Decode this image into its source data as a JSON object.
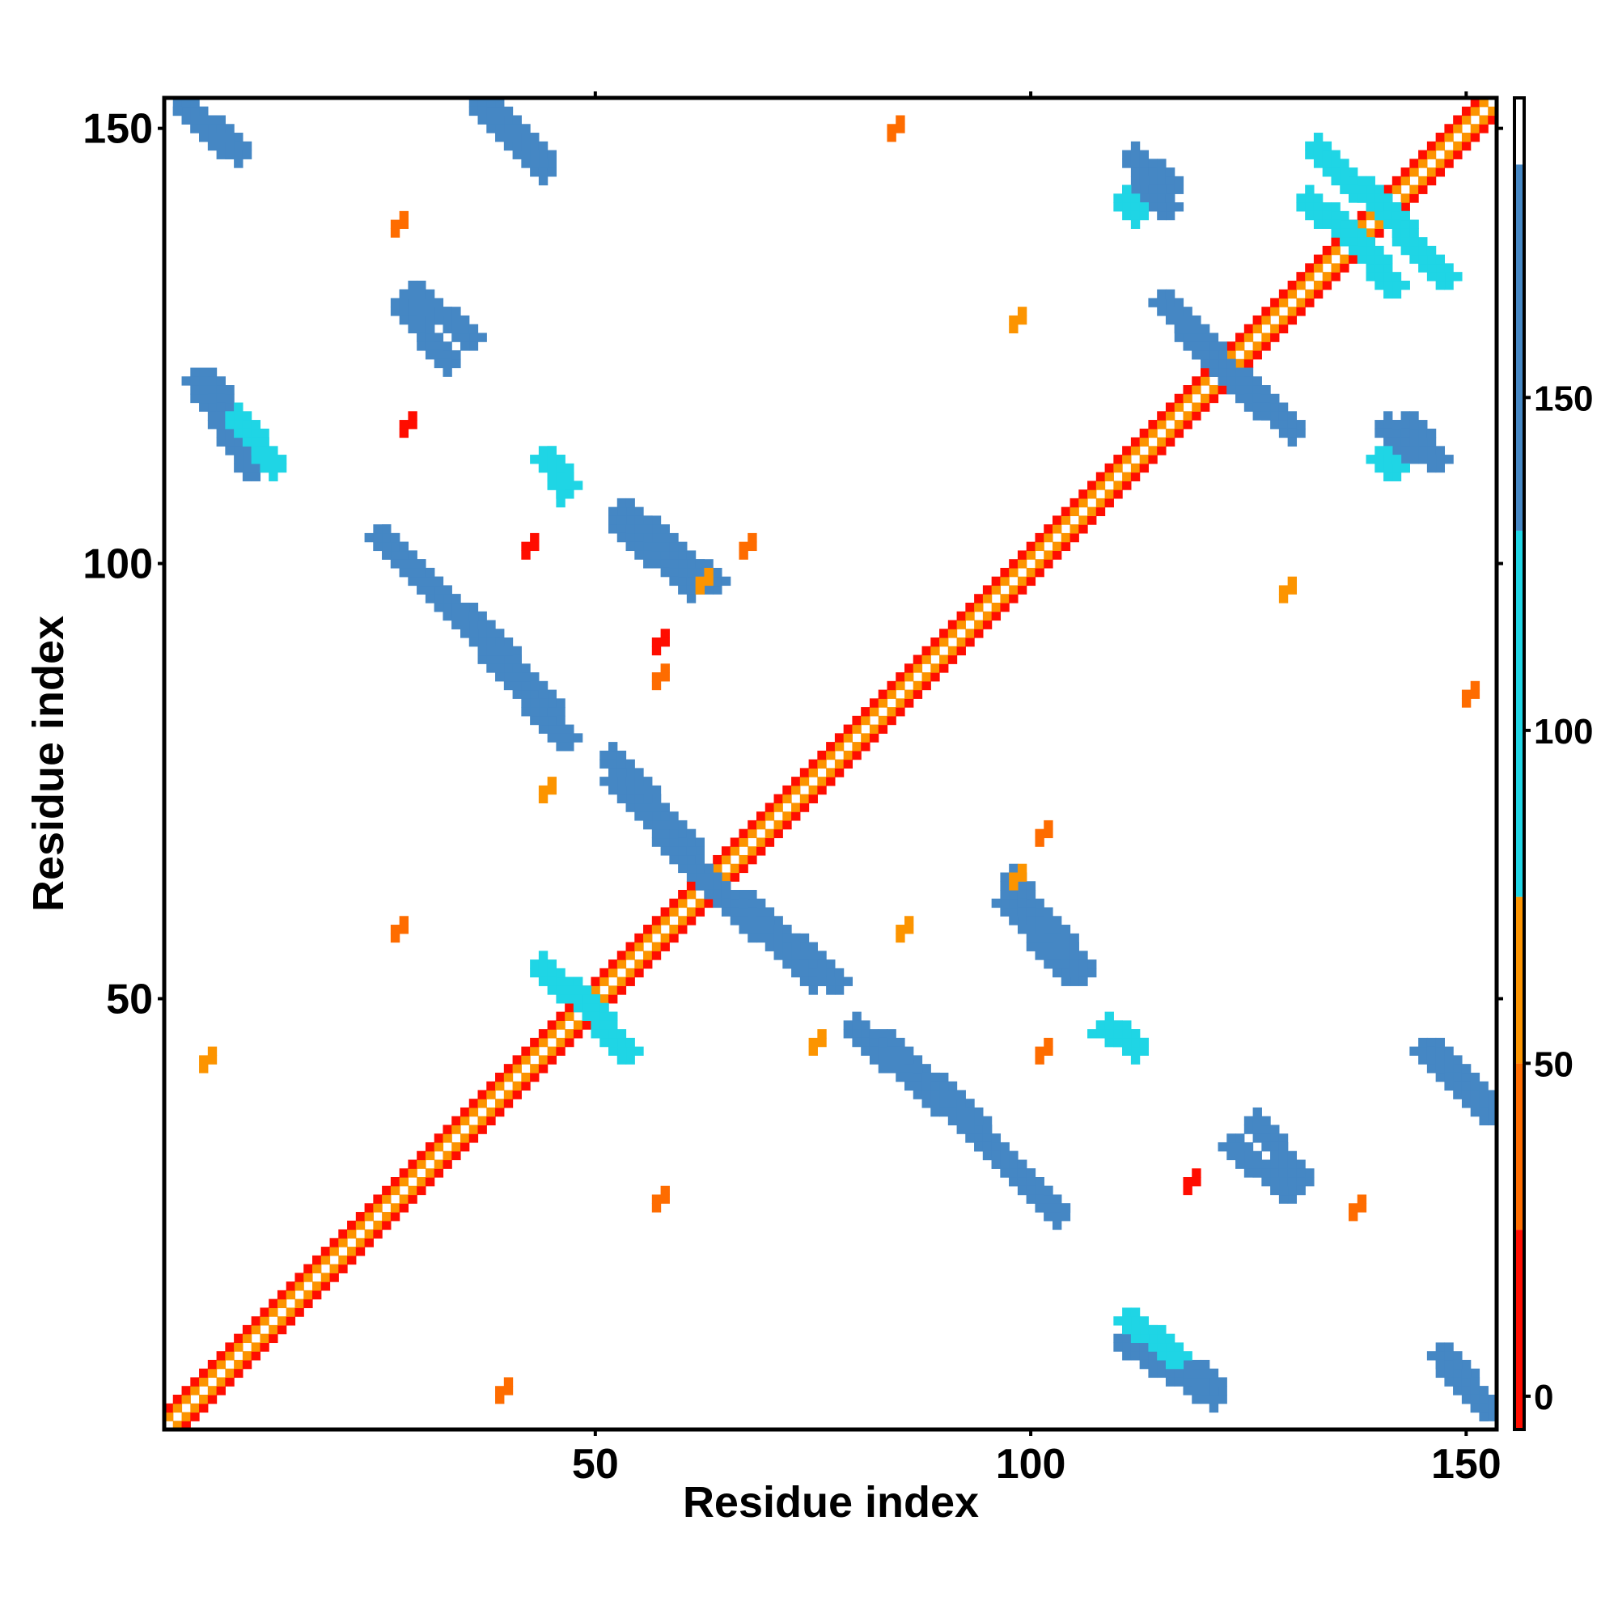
{
  "chart_data": {
    "type": "heatmap",
    "title": "",
    "xlabel": "Residue index",
    "ylabel": "Residue index",
    "xlim": [
      1,
      153
    ],
    "ylim": [
      1,
      153
    ],
    "x_ticks": [
      50,
      100,
      150
    ],
    "y_ticks": [
      50,
      100,
      150
    ],
    "colorbar": {
      "ticks": [
        0,
        50,
        100,
        150
      ],
      "range": [
        -5,
        195
      ],
      "color_bands": [
        {
          "from": -5,
          "to": 25,
          "color": "#ff0d00"
        },
        {
          "from": 25,
          "to": 50,
          "color": "#fe6c00"
        },
        {
          "from": 50,
          "to": 75,
          "color": "#fc9400"
        },
        {
          "from": 75,
          "to": 130,
          "color": "#1fd5e5"
        },
        {
          "from": 130,
          "to": 185,
          "color": "#4587c4"
        },
        {
          "from": 185,
          "to": 195,
          "color": "#ffffff"
        }
      ]
    },
    "grid": false,
    "diagonal_bands": [
      {
        "from": 1,
        "to": 153,
        "colors": [
          "#fc9400",
          "#ff0d00"
        ]
      }
    ],
    "contact_segments": [
      {
        "x1": 2,
        "y1": 153,
        "x2": 9,
        "y2": 147,
        "value": 150
      },
      {
        "x1": 36,
        "y1": 153,
        "x2": 44,
        "y2": 145,
        "value": 150
      },
      {
        "x1": 27,
        "y1": 130,
        "x2": 33,
        "y2": 123,
        "value": 150
      },
      {
        "x1": 25,
        "y1": 103,
        "x2": 34,
        "y2": 94,
        "value": 150
      },
      {
        "x1": 35,
        "y1": 94,
        "x2": 45,
        "y2": 83,
        "value": 150
      },
      {
        "x1": 51,
        "y1": 78,
        "x2": 61,
        "y2": 67,
        "value": 150
      },
      {
        "x1": 62,
        "y1": 64,
        "x2": 75,
        "y2": 52,
        "value": 150
      },
      {
        "x1": 52,
        "y1": 105,
        "x2": 61,
        "y2": 97,
        "value": 150
      },
      {
        "x1": 79,
        "y1": 47,
        "x2": 89,
        "y2": 38,
        "value": 150
      },
      {
        "x1": 89,
        "y1": 39,
        "x2": 103,
        "y2": 25,
        "value": 150
      },
      {
        "x1": 97,
        "y1": 64,
        "x2": 106,
        "y2": 53,
        "value": 150
      },
      {
        "x1": 108,
        "y1": 47,
        "x2": 112,
        "y2": 44,
        "value": 100
      },
      {
        "x1": 125,
        "y1": 36,
        "x2": 131,
        "y2": 29,
        "value": 150
      },
      {
        "x1": 146,
        "y1": 44,
        "x2": 152,
        "y2": 38,
        "value": 150
      },
      {
        "x1": 147,
        "y1": 8,
        "x2": 152,
        "y2": 3,
        "value": 150
      },
      {
        "x1": 110,
        "y1": 11,
        "x2": 121,
        "y2": 4,
        "value": 150
      },
      {
        "x1": 117,
        "y1": 127,
        "x2": 124,
        "y2": 120,
        "value": 150
      },
      {
        "x1": 124,
        "y1": 121,
        "x2": 130,
        "y2": 115,
        "value": 150
      },
      {
        "x1": 111,
        "y1": 147,
        "x2": 116,
        "y2": 143,
        "value": 150
      },
      {
        "x1": 140,
        "y1": 116,
        "x2": 143,
        "y2": 112,
        "value": 150
      },
      {
        "x1": 132,
        "y1": 148,
        "x2": 143,
        "y2": 138,
        "value": 100
      },
      {
        "x1": 44,
        "y1": 112,
        "x2": 46,
        "y2": 108,
        "value": 100
      },
      {
        "x1": 5,
        "y1": 121,
        "x2": 7,
        "y2": 119,
        "value": 150
      },
      {
        "x1": 8,
        "y1": 117,
        "x2": 13,
        "y2": 111,
        "value": 100
      },
      {
        "x1": 43,
        "y1": 54,
        "x2": 51,
        "y2": 47,
        "value": 100
      },
      {
        "x1": 110,
        "y1": 142,
        "x2": 112,
        "y2": 140,
        "value": 75
      },
      {
        "x1": 131,
        "y1": 142,
        "x2": 137,
        "y2": 137,
        "value": 75
      }
    ],
    "annotated_clusters": [
      {
        "x": 27,
        "y": 139,
        "value": 40
      },
      {
        "x": 84,
        "y": 150,
        "value": 40
      },
      {
        "x": 98,
        "y": 128,
        "value": 60
      },
      {
        "x": 28,
        "y": 116,
        "value": 10
      },
      {
        "x": 42,
        "y": 102,
        "value": 15
      },
      {
        "x": 67,
        "y": 102,
        "value": 30
      },
      {
        "x": 57,
        "y": 91,
        "value": 10
      },
      {
        "x": 57,
        "y": 87,
        "value": 45
      },
      {
        "x": 62,
        "y": 98,
        "value": 60
      },
      {
        "x": 27,
        "y": 58,
        "value": 40
      },
      {
        "x": 5,
        "y": 43,
        "value": 60
      },
      {
        "x": 101,
        "y": 69,
        "value": 35
      },
      {
        "x": 98,
        "y": 64,
        "value": 55
      },
      {
        "x": 85,
        "y": 58,
        "value": 50
      },
      {
        "x": 101,
        "y": 44,
        "value": 35
      },
      {
        "x": 57,
        "y": 27,
        "value": 40
      },
      {
        "x": 39,
        "y": 5,
        "value": 40
      },
      {
        "x": 137,
        "y": 26,
        "value": 40
      },
      {
        "x": 118,
        "y": 29,
        "value": 10
      },
      {
        "x": 150,
        "y": 85,
        "value": 45
      },
      {
        "x": 129,
        "y": 97,
        "value": 60
      },
      {
        "x": 44,
        "y": 74,
        "value": 60
      },
      {
        "x": 75,
        "y": 45,
        "value": 60
      }
    ]
  }
}
